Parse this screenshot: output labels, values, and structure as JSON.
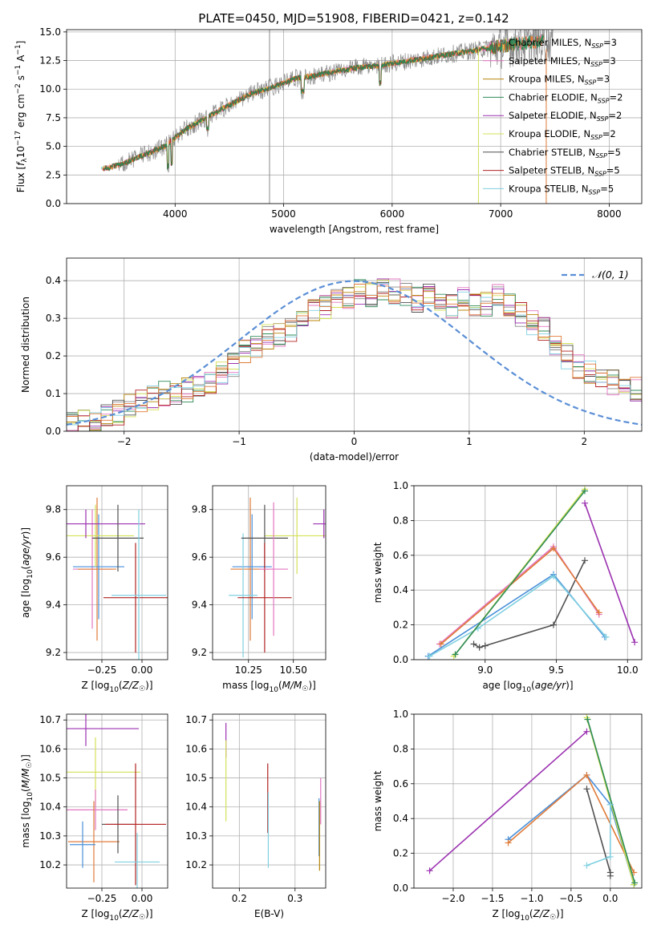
{
  "page": {
    "title": "PLATE=0450, MJD=51908, FIBERID=0421, z=0.142"
  },
  "colors": {
    "chabrier_miles": "#8a8a8a",
    "salpeter_miles": "#e377c2",
    "kroupa_miles": "#b8860b",
    "chabrier_elodie": "#2e8b57",
    "salpeter_elodie": "#9b30b0",
    "kroupa_elodie": "#d4e157",
    "chabrier_stelib": "#505050",
    "salpeter_stelib": "#b22222",
    "kroupa_stelib": "#80d0e0",
    "orange": "#e07b39",
    "blue": "#4a90d9",
    "normal_dash": "#5b8fd6"
  },
  "chart_data": [
    {
      "id": "spectrum",
      "type": "line",
      "title": "PLATE=0450, MJD=51908, FIBERID=0421, z=0.142",
      "xlabel": "wavelength [Angstrom, rest frame]",
      "ylabel": "Flux [f_λ 10^-17 erg cm^-2 s^-1 A^-1]",
      "xlim": [
        3000,
        8300
      ],
      "ylim": [
        0,
        15.2
      ],
      "xticks": [
        "4000",
        "5000",
        "6000",
        "7000",
        "8000"
      ],
      "xtick_values": [
        4000,
        5000,
        6000,
        7000,
        8000
      ],
      "yticks": [
        "0.0",
        "2.5",
        "5.0",
        "7.5",
        "10.0",
        "12.5",
        "15.0"
      ],
      "ytick_values": [
        0,
        2.5,
        5,
        7.5,
        10,
        12.5,
        15
      ],
      "legend": [
        {
          "label": "Chabrier MILES, N",
          "sub": "SSP",
          "tail": "=3",
          "color": "chabrier_miles"
        },
        {
          "label": "Salpeter MILES, N",
          "sub": "SSP",
          "tail": "=3",
          "color": "salpeter_miles"
        },
        {
          "label": "Kroupa MILES, N",
          "sub": "SSP",
          "tail": "=3",
          "color": "kroupa_miles"
        },
        {
          "label": "Chabrier ELODIE, N",
          "sub": "SSP",
          "tail": "=2",
          "color": "chabrier_elodie"
        },
        {
          "label": "Salpeter ELODIE, N",
          "sub": "SSP",
          "tail": "=2",
          "color": "salpeter_elodie"
        },
        {
          "label": "Kroupa ELODIE, N",
          "sub": "SSP",
          "tail": "=2",
          "color": "kroupa_elodie"
        },
        {
          "label": "Chabrier STELIB, N",
          "sub": "SSP",
          "tail": "=5",
          "color": "chabrier_stelib"
        },
        {
          "label": "Salpeter STELIB, N",
          "sub": "SSP",
          "tail": "=5",
          "color": "salpeter_stelib"
        },
        {
          "label": "Kroupa STELIB, N",
          "sub": "SSP",
          "tail": "=5",
          "color": "kroupa_stelib"
        }
      ],
      "continuum_x": [
        3320,
        3500,
        3700,
        3900,
        4100,
        4300,
        4500,
        4700,
        4900,
        5100,
        5300,
        5500,
        5700,
        5900,
        6100,
        6300,
        6500,
        6700,
        6900,
        7100,
        7300,
        7500
      ],
      "continuum_y": [
        3.0,
        3.4,
        4.2,
        5.0,
        6.5,
        7.6,
        8.6,
        9.6,
        10.2,
        10.9,
        11.2,
        11.6,
        11.9,
        12.1,
        12.4,
        12.7,
        13.0,
        13.3,
        13.6,
        13.9,
        14.1,
        14.3
      ]
    },
    {
      "id": "residuals",
      "type": "line",
      "xlabel": "(data-model)/error",
      "ylabel": "Normed distribution",
      "xlim": [
        -2.5,
        2.5
      ],
      "ylim": [
        0,
        0.46
      ],
      "xticks": [
        "−2",
        "−1",
        "0",
        "1",
        "2"
      ],
      "xtick_values": [
        -2,
        -1,
        0,
        1,
        2
      ],
      "yticks": [
        "0.0",
        "0.1",
        "0.2",
        "0.3",
        "0.4"
      ],
      "ytick_values": [
        0,
        0.1,
        0.2,
        0.3,
        0.4
      ],
      "legend": [
        {
          "label": "𝒩(0, 1)",
          "color": "normal_dash"
        }
      ],
      "bin_edges_start": -2.5,
      "bin_width": 0.1,
      "hist_mean": [
        0.02,
        0.025,
        0.03,
        0.04,
        0.05,
        0.07,
        0.08,
        0.09,
        0.1,
        0.1,
        0.11,
        0.12,
        0.13,
        0.15,
        0.18,
        0.21,
        0.23,
        0.25,
        0.26,
        0.27,
        0.3,
        0.32,
        0.33,
        0.35,
        0.36,
        0.37,
        0.36,
        0.38,
        0.37,
        0.36,
        0.35,
        0.36,
        0.34,
        0.33,
        0.35,
        0.33,
        0.34,
        0.36,
        0.33,
        0.31,
        0.29,
        0.27,
        0.23,
        0.2,
        0.17,
        0.16,
        0.14,
        0.13,
        0.12,
        0.11,
        0.1,
        0.09,
        0.08,
        0.07,
        0.07,
        0.06,
        0.05,
        0.04,
        0.03,
        0.03
      ]
    },
    {
      "id": "age_vs_Z",
      "type": "scatter",
      "xlabel": "Z [log10(Z/Z☉)]",
      "ylabel": "age  [log10(age/yr)]",
      "xlim": [
        -0.47,
        0.16
      ],
      "ylim": [
        9.17,
        9.9
      ],
      "xticks": [
        "−0.25",
        "0.00"
      ],
      "xtick_values": [
        -0.25,
        0.0
      ],
      "yticks": [
        "9.2",
        "9.4",
        "9.6",
        "9.8"
      ],
      "ytick_values": [
        9.2,
        9.4,
        9.6,
        9.8
      ],
      "points": [
        {
          "x": -0.31,
          "y": 9.55,
          "xerr": 0.12,
          "yerr": 0.25,
          "color": "salpeter_miles"
        },
        {
          "x": -0.28,
          "y": 9.55,
          "xerr": 0.12,
          "yerr": 0.3,
          "color": "orange"
        },
        {
          "x": -0.27,
          "y": 9.56,
          "xerr": 0.16,
          "yerr": 0.22,
          "color": "blue"
        },
        {
          "x": -0.29,
          "y": 9.69,
          "xerr": 0.24,
          "yerr": 0.13,
          "color": "kroupa_elodie"
        },
        {
          "x": -0.35,
          "y": 9.74,
          "xerr": 0.37,
          "yerr": 0.06,
          "color": "salpeter_elodie"
        },
        {
          "x": -0.15,
          "y": 9.68,
          "xerr": 0.16,
          "yerr": 0.14,
          "color": "chabrier_stelib"
        },
        {
          "x": -0.04,
          "y": 9.43,
          "xerr": 0.2,
          "yerr": 0.23,
          "color": "salpeter_stelib"
        },
        {
          "x": -0.02,
          "y": 9.44,
          "xerr": 0.17,
          "yerr": 0.36,
          "color": "kroupa_stelib"
        }
      ]
    },
    {
      "id": "age_vs_mass",
      "type": "scatter",
      "xlabel": "mass [log10(M/M☉)]",
      "ylabel": "",
      "xlim": [
        10.05,
        10.68
      ],
      "ylim": [
        9.17,
        9.9
      ],
      "xticks": [
        "10.25",
        "10.50"
      ],
      "xtick_values": [
        10.25,
        10.5
      ],
      "yticks": [
        "9.2",
        "9.4",
        "9.6",
        "9.8"
      ],
      "ytick_values": [
        9.2,
        9.4,
        9.6,
        9.8
      ],
      "points": [
        {
          "x": 10.26,
          "y": 9.55,
          "xerr": 0.11,
          "yerr": 0.3,
          "color": "orange"
        },
        {
          "x": 10.27,
          "y": 9.56,
          "xerr": 0.11,
          "yerr": 0.22,
          "color": "blue"
        },
        {
          "x": 10.22,
          "y": 9.44,
          "xerr": 0.08,
          "yerr": 0.26,
          "color": "kroupa_stelib"
        },
        {
          "x": 10.52,
          "y": 9.69,
          "xerr": 0.18,
          "yerr": 0.16,
          "color": "kroupa_elodie"
        },
        {
          "x": 10.67,
          "y": 9.74,
          "xerr": 0.06,
          "yerr": 0.06,
          "color": "salpeter_elodie"
        },
        {
          "x": 10.34,
          "y": 9.68,
          "xerr": 0.13,
          "yerr": 0.14,
          "color": "chabrier_stelib"
        },
        {
          "x": 10.34,
          "y": 9.43,
          "xerr": 0.15,
          "yerr": 0.23,
          "color": "salpeter_stelib"
        },
        {
          "x": 10.39,
          "y": 9.55,
          "xerr": 0.08,
          "yerr": 0.28,
          "color": "salpeter_miles"
        }
      ]
    },
    {
      "id": "weight_vs_age",
      "type": "line",
      "xlabel": "age  [log10(age/yr)]",
      "ylabel": "mass weight",
      "xlim": [
        8.5,
        10.1
      ],
      "ylim": [
        0,
        1.0
      ],
      "xticks": [
        "9.0",
        "9.5",
        "10.0"
      ],
      "xtick_values": [
        9.0,
        9.5,
        10.0
      ],
      "yticks": [
        "0.0",
        "0.2",
        "0.4",
        "0.6",
        "0.8",
        "1.0"
      ],
      "ytick_values": [
        0,
        0.2,
        0.4,
        0.6,
        0.8,
        1.0
      ],
      "series": [
        {
          "color": "chabrier_stelib",
          "x": [
            8.92,
            8.96,
            9.0,
            9.48,
            9.7
          ],
          "y": [
            0.09,
            0.07,
            0.08,
            0.2,
            0.57
          ]
        },
        {
          "color": "salpeter_miles",
          "x": [
            8.68,
            9.48,
            9.8
          ],
          "y": [
            0.09,
            0.65,
            0.26
          ]
        },
        {
          "color": "orange",
          "x": [
            8.69,
            9.48,
            9.8
          ],
          "y": [
            0.09,
            0.64,
            0.27
          ]
        },
        {
          "color": "blue",
          "x": [
            8.6,
            9.48,
            9.84
          ],
          "y": [
            0.02,
            0.49,
            0.13
          ]
        },
        {
          "color": "kroupa_stelib",
          "x": [
            8.61,
            8.95,
            9.48,
            9.85
          ],
          "y": [
            0.02,
            0.18,
            0.48,
            0.13
          ]
        },
        {
          "color": "kroupa_elodie",
          "x": [
            8.78,
            9.7
          ],
          "y": [
            0.02,
            0.98
          ]
        },
        {
          "color": "chabrier_elodie",
          "x": [
            8.79,
            9.7
          ],
          "y": [
            0.03,
            0.97
          ]
        },
        {
          "color": "salpeter_elodie",
          "x": [
            9.7,
            10.05
          ],
          "y": [
            0.9,
            0.1
          ]
        }
      ]
    },
    {
      "id": "mass_vs_Z",
      "type": "scatter",
      "xlabel": "Z [log10(Z/Z☉)]",
      "ylabel": "mass [log10(M/M☉)]",
      "xlim": [
        -0.47,
        0.16
      ],
      "ylim": [
        10.12,
        10.72
      ],
      "xticks": [
        "−0.25",
        "0.00"
      ],
      "xtick_values": [
        -0.25,
        0.0
      ],
      "yticks": [
        "10.2",
        "10.3",
        "10.4",
        "10.5",
        "10.6",
        "10.7"
      ],
      "ytick_values": [
        10.2,
        10.3,
        10.4,
        10.5,
        10.6,
        10.7
      ],
      "points": [
        {
          "x": -0.35,
          "y": 10.67,
          "xerr": 0.33,
          "yerr": 0.06,
          "color": "salpeter_elodie"
        },
        {
          "x": -0.29,
          "y": 10.52,
          "xerr": 0.28,
          "yerr": 0.12,
          "color": "kroupa_elodie"
        },
        {
          "x": -0.29,
          "y": 10.39,
          "xerr": 0.2,
          "yerr": 0.07,
          "color": "salpeter_miles"
        },
        {
          "x": -0.3,
          "y": 10.28,
          "xerr": 0.16,
          "yerr": 0.14,
          "color": "orange"
        },
        {
          "x": -0.37,
          "y": 10.27,
          "xerr": 0.08,
          "yerr": 0.08,
          "color": "blue"
        },
        {
          "x": -0.15,
          "y": 10.34,
          "xerr": 0.1,
          "yerr": 0.1,
          "color": "chabrier_stelib"
        },
        {
          "x": -0.04,
          "y": 10.34,
          "xerr": 0.19,
          "yerr": 0.21,
          "color": "salpeter_stelib"
        },
        {
          "x": -0.03,
          "y": 10.21,
          "xerr": 0.14,
          "yerr": 0.1,
          "color": "kroupa_stelib"
        }
      ]
    },
    {
      "id": "mass_vs_ebv",
      "type": "scatter",
      "xlabel": "E(B-V)",
      "ylabel": "",
      "xlim": [
        0.152,
        0.355
      ],
      "ylim": [
        10.12,
        10.72
      ],
      "xticks": [
        "0.2",
        "0.3"
      ],
      "xtick_values": [
        0.2,
        0.3
      ],
      "yticks": [
        "10.2",
        "10.3",
        "10.4",
        "10.5",
        "10.6",
        "10.7"
      ],
      "ytick_values": [
        10.2,
        10.3,
        10.4,
        10.5,
        10.6,
        10.7
      ],
      "points": [
        {
          "x": 0.176,
          "y": 10.63,
          "yerr": 0.06,
          "color": "salpeter_elodie"
        },
        {
          "x": 0.176,
          "y": 10.49,
          "yerr": 0.14,
          "color": "kroupa_elodie"
        },
        {
          "x": 0.251,
          "y": 10.43,
          "yerr": 0.12,
          "color": "salpeter_stelib"
        },
        {
          "x": 0.252,
          "y": 10.32,
          "yerr": 0.13,
          "color": "kroupa_stelib"
        },
        {
          "x": 0.343,
          "y": 10.33,
          "yerr": 0.1,
          "color": "blue"
        },
        {
          "x": 0.346,
          "y": 10.42,
          "yerr": 0.08,
          "color": "salpeter_miles"
        },
        {
          "x": 0.344,
          "y": 10.3,
          "yerr": 0.12,
          "color": "kroupa_miles"
        }
      ]
    },
    {
      "id": "weight_vs_Z",
      "type": "line",
      "xlabel": "Z [log10(Z/Z☉)]",
      "ylabel": "mass weight",
      "xlim": [
        -2.5,
        0.4
      ],
      "ylim": [
        0,
        1.0
      ],
      "xticks": [
        "−2.0",
        "−1.5",
        "−1.0",
        "−0.5",
        "0.0"
      ],
      "xtick_values": [
        -2.0,
        -1.5,
        -1.0,
        -0.5,
        0.0
      ],
      "yticks": [
        "0.0",
        "0.2",
        "0.4",
        "0.6",
        "0.8",
        "1.0"
      ],
      "ytick_values": [
        0,
        0.2,
        0.4,
        0.6,
        0.8,
        1.0
      ],
      "series": [
        {
          "color": "salpeter_elodie",
          "x": [
            -2.3,
            -0.3
          ],
          "y": [
            0.1,
            0.9
          ]
        },
        {
          "color": "blue",
          "x": [
            -1.3,
            -0.3,
            0.0,
            0.3
          ],
          "y": [
            0.28,
            0.65,
            0.48,
            0.02
          ]
        },
        {
          "color": "orange",
          "x": [
            -1.3,
            -0.3,
            0.3
          ],
          "y": [
            0.26,
            0.65,
            0.09
          ]
        },
        {
          "color": "kroupa_elodie",
          "x": [
            -0.3,
            0.3
          ],
          "y": [
            0.98,
            0.02
          ]
        },
        {
          "color": "chabrier_elodie",
          "x": [
            -0.29,
            0.31
          ],
          "y": [
            0.97,
            0.03
          ]
        },
        {
          "color": "chabrier_stelib",
          "x": [
            -0.3,
            0.0,
            0.0
          ],
          "y": [
            0.57,
            0.09,
            0.07
          ]
        },
        {
          "color": "kroupa_stelib",
          "x": [
            -0.3,
            0.0,
            0.0
          ],
          "y": [
            0.13,
            0.18,
            0.48
          ]
        }
      ]
    }
  ]
}
